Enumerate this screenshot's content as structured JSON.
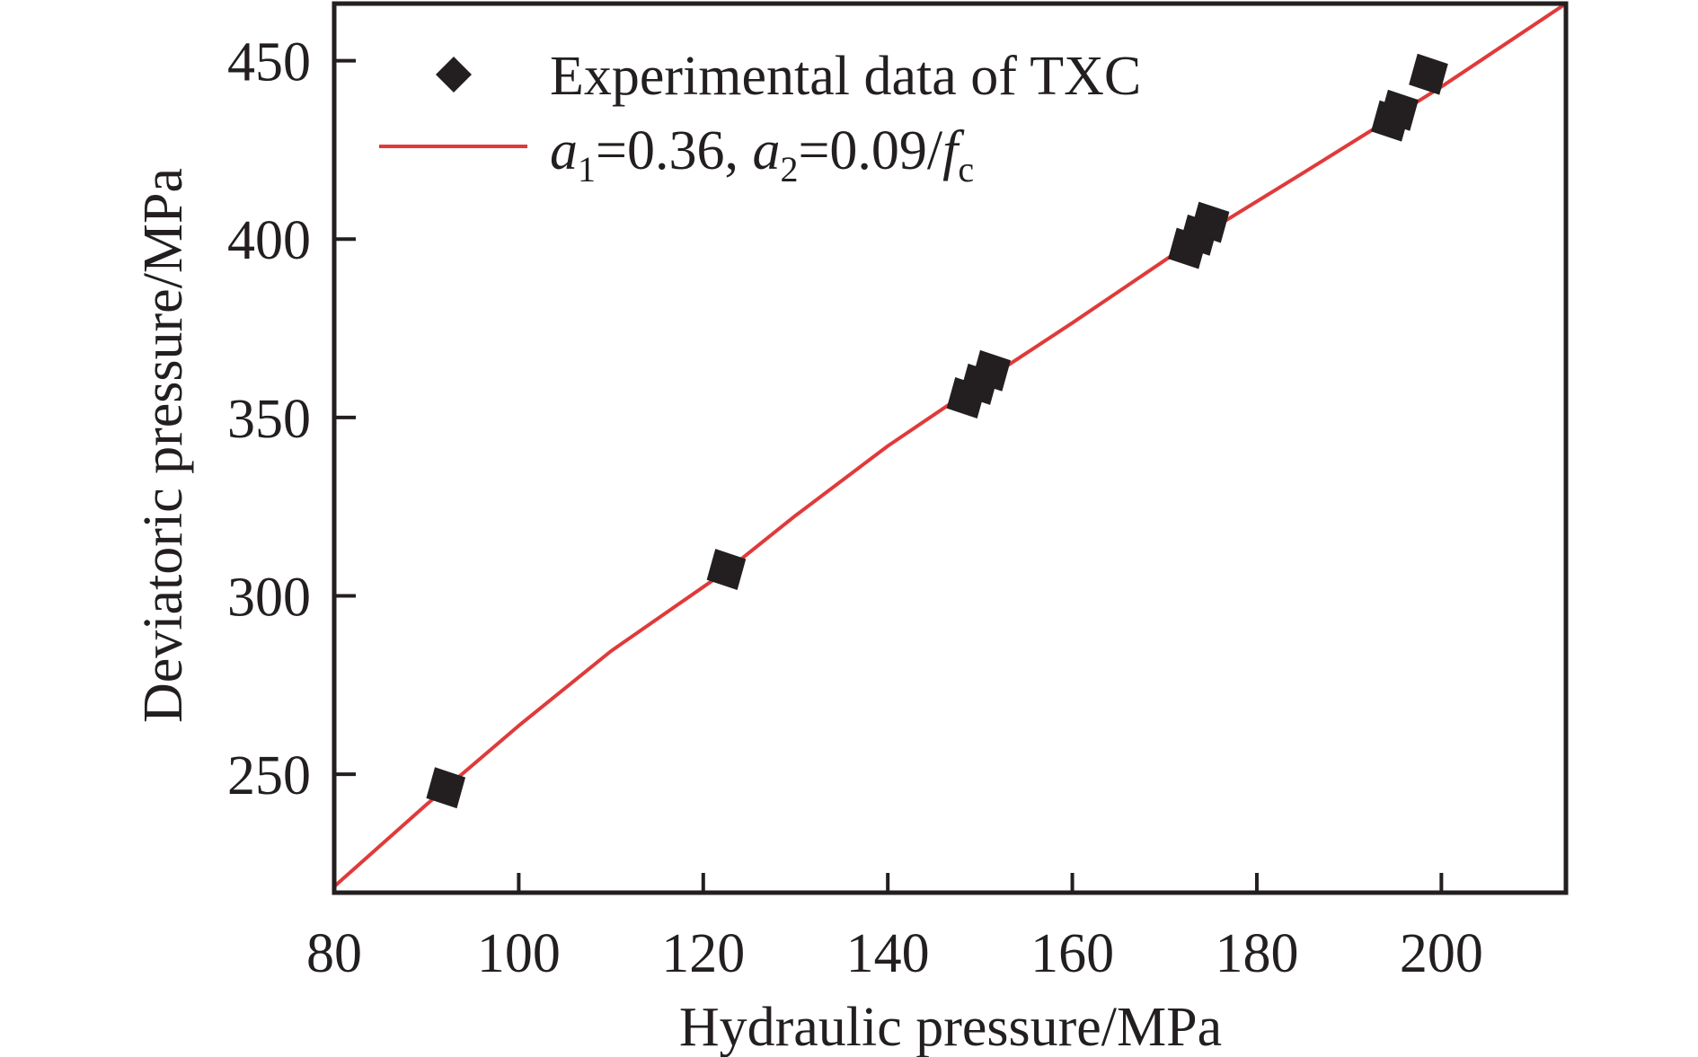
{
  "chart_data": {
    "type": "scatter",
    "title": "",
    "xlabel": "Hydraulic pressure/MPa",
    "ylabel": "Deviatoric pressure/MPa",
    "xlim": [
      80,
      213.5
    ],
    "ylim": [
      216.8,
      466
    ],
    "xticks": [
      80,
      100,
      120,
      140,
      160,
      180,
      200
    ],
    "yticks": [
      250,
      300,
      350,
      400,
      450
    ],
    "grid": false,
    "legend_position": "top-left",
    "colors": {
      "axes": "#231f20",
      "markers": "#231f20",
      "fit_line": "#e03a3a"
    },
    "series": [
      {
        "name": "Experimental data of TXC",
        "kind": "scatter",
        "marker": "diamond",
        "points": [
          {
            "x": 92.1,
            "y": 246.2
          },
          {
            "x": 122.5,
            "y": 307.4
          },
          {
            "x": 148.5,
            "y": 355.5
          },
          {
            "x": 149.9,
            "y": 359.3
          },
          {
            "x": 151.2,
            "y": 363.1
          },
          {
            "x": 172.5,
            "y": 397.4
          },
          {
            "x": 173.7,
            "y": 401.1
          },
          {
            "x": 174.9,
            "y": 404.7
          },
          {
            "x": 194.5,
            "y": 433.1
          },
          {
            "x": 195.4,
            "y": 436.1
          },
          {
            "x": 198.6,
            "y": 446.2
          }
        ]
      },
      {
        "name": "a1=0.36, a2=0.09/fc",
        "kind": "line",
        "legend_parts": {
          "a1_symbol": "a",
          "a1_sub": "1",
          "a1_value": "=0.36, ",
          "a2_symbol": "a",
          "a2_sub": "2",
          "a2_value": "=0.09/",
          "fc_symbol": "f",
          "fc_sub": "c"
        },
        "points": [
          {
            "x": 80,
            "y": 218.5
          },
          {
            "x": 90,
            "y": 241.5
          },
          {
            "x": 100,
            "y": 263.6
          },
          {
            "x": 110,
            "y": 284.5
          },
          {
            "x": 122.5,
            "y": 307.0
          },
          {
            "x": 130,
            "y": 322.5
          },
          {
            "x": 140,
            "y": 342.0
          },
          {
            "x": 150,
            "y": 359.5
          },
          {
            "x": 160,
            "y": 376.5
          },
          {
            "x": 174,
            "y": 401.0
          },
          {
            "x": 185,
            "y": 418.5
          },
          {
            "x": 200,
            "y": 442.7
          },
          {
            "x": 213.5,
            "y": 466.0
          }
        ]
      }
    ]
  }
}
